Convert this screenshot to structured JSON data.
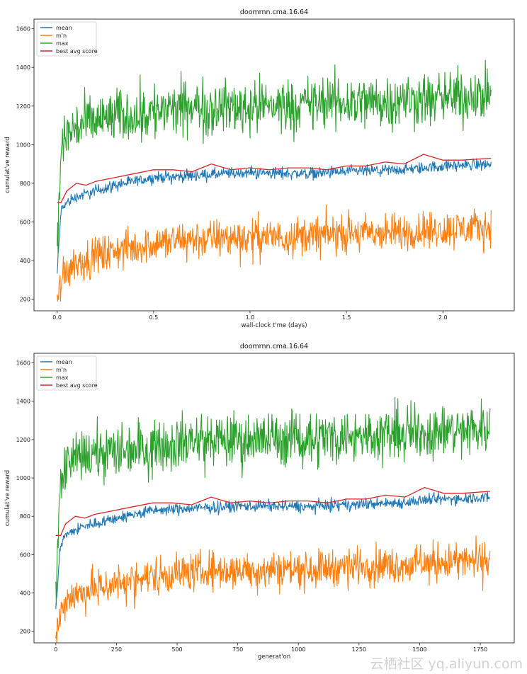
{
  "chart_data": [
    {
      "type": "line",
      "title": "doomrnn.cma.16.64",
      "xlabel": "wall-clock t'me (days)",
      "ylabel": "cumulat've reward",
      "xlim": [
        -0.12,
        2.37
      ],
      "ylim": [
        140,
        1650
      ],
      "xticks": [
        0.0,
        0.5,
        1.0,
        1.5,
        2.0
      ],
      "xtick_labels": [
        "0.0",
        "0.5",
        "1.0",
        "1.5",
        "2.0"
      ],
      "yticks": [
        200,
        400,
        600,
        800,
        1000,
        1200,
        1400,
        1600
      ],
      "ytick_labels": [
        "200",
        "400",
        "600",
        "800",
        "1000",
        "1200",
        "1400",
        "1600"
      ],
      "legend_position": "top-left",
      "grid": false,
      "series": [
        {
          "name": "mean",
          "color": "#1f77b4",
          "x": [
            0.0,
            0.02,
            0.05,
            0.1,
            0.2,
            0.3,
            0.5,
            0.7,
            1.0,
            1.3,
            1.5,
            1.8,
            2.0,
            2.25
          ],
          "y": [
            330,
            660,
            700,
            730,
            760,
            790,
            830,
            840,
            855,
            850,
            860,
            870,
            890,
            900
          ]
        },
        {
          "name": "m'n",
          "color": "#ff7f0e",
          "x": [
            0.0,
            0.02,
            0.05,
            0.1,
            0.2,
            0.3,
            0.5,
            0.7,
            1.0,
            1.3,
            1.5,
            1.8,
            2.0,
            2.25
          ],
          "y": [
            170,
            300,
            360,
            390,
            420,
            450,
            490,
            510,
            520,
            530,
            540,
            545,
            560,
            570
          ]
        },
        {
          "name": "max",
          "color": "#2ca02c",
          "x": [
            0.0,
            0.02,
            0.05,
            0.1,
            0.2,
            0.3,
            0.5,
            0.7,
            1.0,
            1.3,
            1.5,
            1.8,
            2.0,
            2.25
          ],
          "y": [
            450,
            960,
            1060,
            1090,
            1120,
            1140,
            1170,
            1190,
            1200,
            1210,
            1220,
            1230,
            1240,
            1260
          ]
        },
        {
          "name": "best avg score",
          "color": "#d62728",
          "x": [
            0.0,
            0.02,
            0.05,
            0.1,
            0.15,
            0.2,
            0.3,
            0.4,
            0.5,
            0.6,
            0.7,
            0.8,
            0.9,
            1.0,
            1.1,
            1.2,
            1.3,
            1.4,
            1.5,
            1.6,
            1.7,
            1.8,
            1.9,
            2.0,
            2.1,
            2.25
          ],
          "y": [
            700,
            700,
            760,
            800,
            790,
            810,
            830,
            850,
            870,
            870,
            860,
            900,
            870,
            880,
            870,
            880,
            880,
            870,
            890,
            890,
            910,
            900,
            950,
            920,
            920,
            930
          ]
        }
      ]
    },
    {
      "type": "line",
      "title": "doomrnn.cma.16.64",
      "xlabel": "generat'on",
      "ylabel": "cumulat've reward",
      "xlim": [
        -90,
        1890
      ],
      "ylim": [
        140,
        1650
      ],
      "xticks": [
        0,
        250,
        500,
        750,
        1000,
        1250,
        1500,
        1750
      ],
      "xtick_labels": [
        "0",
        "250",
        "500",
        "750",
        "1000",
        "1250",
        "1500",
        "1750"
      ],
      "yticks": [
        200,
        400,
        600,
        800,
        1000,
        1200,
        1400,
        1600
      ],
      "ytick_labels": [
        "200",
        "400",
        "600",
        "800",
        "1000",
        "1200",
        "1400",
        "1600"
      ],
      "legend_position": "top-left",
      "grid": false,
      "series": [
        {
          "name": "mean",
          "color": "#1f77b4",
          "x": [
            0,
            20,
            40,
            80,
            150,
            250,
            400,
            550,
            800,
            1050,
            1200,
            1400,
            1600,
            1790
          ],
          "y": [
            330,
            660,
            700,
            730,
            760,
            790,
            830,
            840,
            855,
            850,
            860,
            870,
            890,
            900
          ]
        },
        {
          "name": "m'n",
          "color": "#ff7f0e",
          "x": [
            0,
            20,
            40,
            80,
            150,
            250,
            400,
            550,
            800,
            1050,
            1200,
            1400,
            1600,
            1790
          ],
          "y": [
            170,
            300,
            360,
            390,
            420,
            450,
            490,
            510,
            520,
            530,
            540,
            545,
            560,
            570
          ]
        },
        {
          "name": "max",
          "color": "#2ca02c",
          "x": [
            0,
            20,
            40,
            80,
            150,
            250,
            400,
            550,
            800,
            1050,
            1200,
            1400,
            1600,
            1790
          ],
          "y": [
            450,
            960,
            1060,
            1090,
            1120,
            1140,
            1170,
            1190,
            1200,
            1210,
            1220,
            1230,
            1240,
            1260
          ]
        },
        {
          "name": "best avg score",
          "color": "#d62728",
          "x": [
            0,
            20,
            40,
            80,
            120,
            160,
            240,
            320,
            400,
            480,
            560,
            640,
            720,
            800,
            880,
            960,
            1040,
            1120,
            1200,
            1280,
            1360,
            1440,
            1520,
            1600,
            1680,
            1790
          ],
          "y": [
            700,
            700,
            760,
            800,
            790,
            810,
            830,
            850,
            870,
            870,
            860,
            900,
            870,
            880,
            870,
            880,
            880,
            870,
            890,
            890,
            910,
            900,
            950,
            920,
            920,
            930
          ]
        }
      ]
    }
  ],
  "watermark": {
    "text": "云栖社区 yq.aliyun.com"
  }
}
